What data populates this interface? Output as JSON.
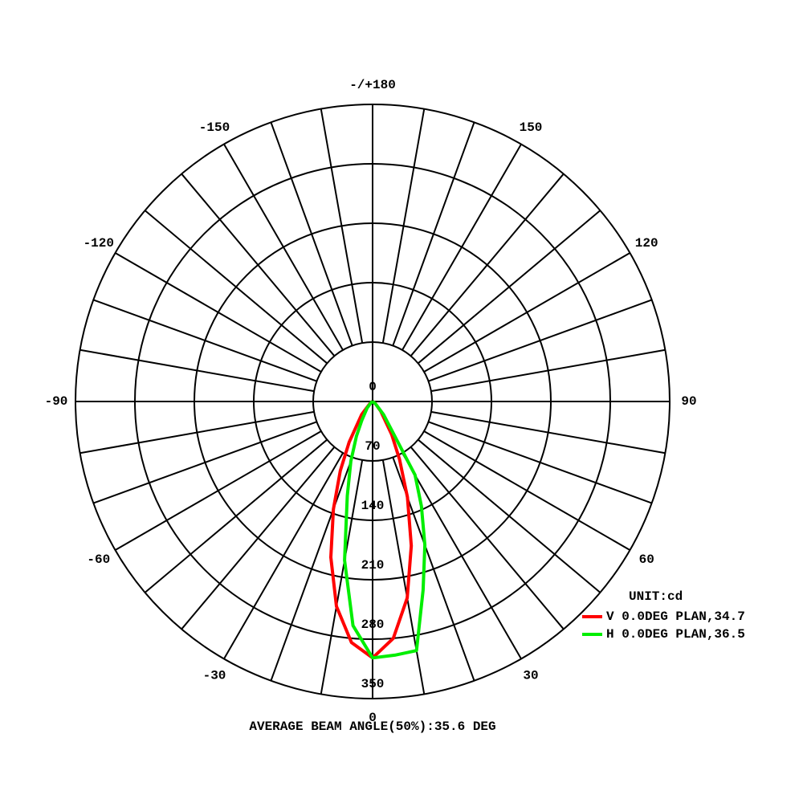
{
  "chart_data": {
    "type": "polar",
    "x": [
      -90,
      -60,
      -50,
      -40,
      -30,
      -25,
      -20,
      -15,
      -10,
      -5,
      0,
      5,
      10,
      15,
      20,
      25,
      30,
      40,
      50,
      60,
      90
    ],
    "series": [
      {
        "name": "V 0.0DEG PLAN,34.7",
        "color": "#ff0000",
        "values": [
          0,
          2,
          5,
          20,
          55,
          90,
          135,
          190,
          245,
          285,
          302,
          280,
          235,
          176,
          120,
          75,
          45,
          15,
          5,
          2,
          0
        ]
      },
      {
        "name": "H 0.0DEG PLAN,36.5",
        "color": "#00ee00",
        "values": [
          0,
          1,
          3,
          10,
          25,
          45,
          75,
          115,
          190,
          265,
          302,
          300,
          298,
          230,
          180,
          136,
          100,
          20,
          5,
          1,
          0
        ]
      }
    ],
    "rlim": [
      0,
      350
    ],
    "rticks": [
      0,
      70,
      140,
      210,
      280,
      350
    ],
    "angle_ticks": [
      0,
      30,
      60,
      90,
      120,
      150,
      {
        "value": 180,
        "label": "-/+180"
      },
      -150,
      -120,
      -90,
      -60,
      -30
    ],
    "legend_title": "UNIT:cd",
    "footer": "AVERAGE BEAM ANGLE(50%):35.6 DEG"
  }
}
